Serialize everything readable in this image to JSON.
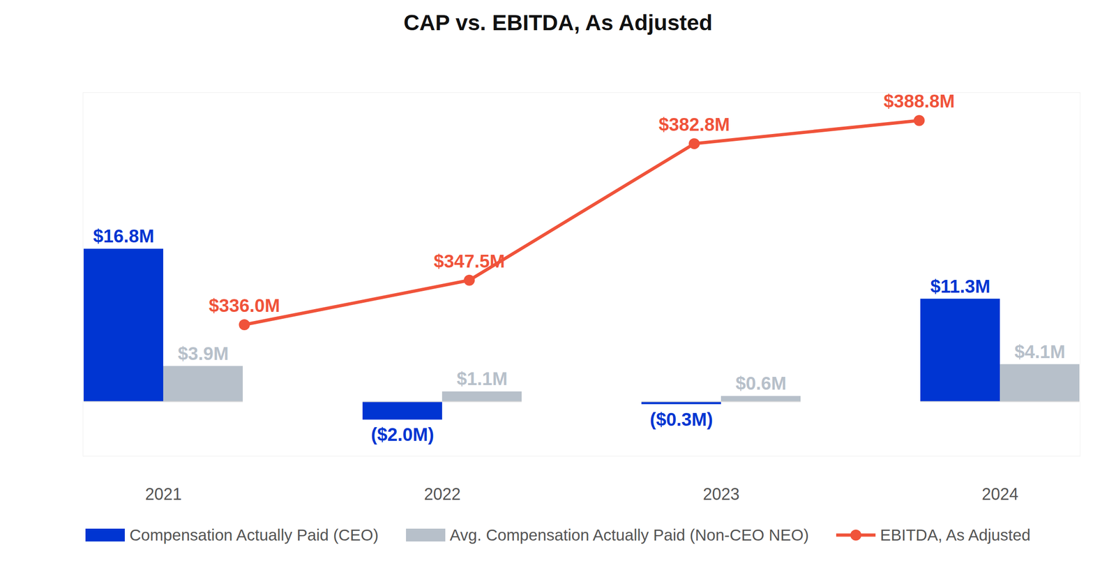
{
  "chart_data": {
    "type": "bar",
    "title": "CAP vs. EBITDA, As Adjusted",
    "categories": [
      "2021",
      "2022",
      "2023",
      "2024"
    ],
    "series": [
      {
        "name": "Compensation Actually Paid (CEO)",
        "type": "bar",
        "color": "#0035d2",
        "values": [
          16.8,
          -2.0,
          -0.3,
          11.3
        ],
        "value_labels": [
          "$16.8M",
          "($2.0M)",
          "($0.3M)",
          "$11.3M"
        ]
      },
      {
        "name": "Avg. Compensation Actually Paid (Non-CEO NEO)",
        "type": "bar",
        "color": "#b7c0ca",
        "values": [
          3.9,
          1.1,
          0.6,
          4.1
        ],
        "value_labels": [
          "$3.9M",
          "$1.1M",
          "$0.6M",
          "$4.1M"
        ]
      },
      {
        "name": "EBITDA, As Adjusted",
        "type": "line",
        "axis": "y2",
        "color": "#f0533a",
        "marker": "circle",
        "values": [
          336.0,
          347.5,
          382.8,
          388.8
        ],
        "value_labels": [
          "$336.0M",
          "$347.5M",
          "$382.8M",
          "$388.8M"
        ]
      }
    ],
    "ylim": [
      -6,
      34
    ],
    "y2lim": [
      302,
      396
    ],
    "data_labels": true,
    "tick_labels": "x",
    "legend": "bottom",
    "grid": false
  }
}
